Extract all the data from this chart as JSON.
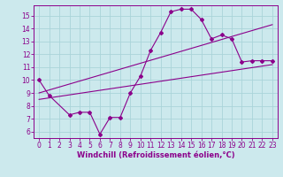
{
  "background_color": "#cce9ed",
  "grid_color": "#aad4d9",
  "line_color": "#8b008b",
  "xlabel": "Windchill (Refroidissement éolien,°C)",
  "xlim": [
    -0.5,
    23.5
  ],
  "ylim": [
    5.5,
    15.8
  ],
  "yticks": [
    6,
    7,
    8,
    9,
    10,
    11,
    12,
    13,
    14,
    15
  ],
  "xticks": [
    0,
    1,
    2,
    3,
    4,
    5,
    6,
    7,
    8,
    9,
    10,
    11,
    12,
    13,
    14,
    15,
    16,
    17,
    18,
    19,
    20,
    21,
    22,
    23
  ],
  "curve1_x": [
    0,
    1,
    3,
    4,
    5,
    6,
    7,
    8,
    9,
    10,
    11,
    12,
    13,
    14,
    15,
    16,
    17,
    18,
    19,
    20,
    21,
    22,
    23
  ],
  "curve1_y": [
    10.0,
    8.8,
    7.3,
    7.5,
    7.5,
    5.8,
    7.1,
    7.1,
    9.0,
    10.3,
    12.3,
    13.7,
    15.3,
    15.5,
    15.5,
    14.7,
    13.2,
    13.5,
    13.2,
    11.4,
    11.5,
    11.5,
    11.5
  ],
  "line2_x": [
    0,
    23
  ],
  "line2_y": [
    8.5,
    11.2
  ],
  "line3_x": [
    0,
    23
  ],
  "line3_y": [
    9.0,
    14.3
  ],
  "tick_fontsize": 5.5,
  "xlabel_fontsize": 6.0
}
